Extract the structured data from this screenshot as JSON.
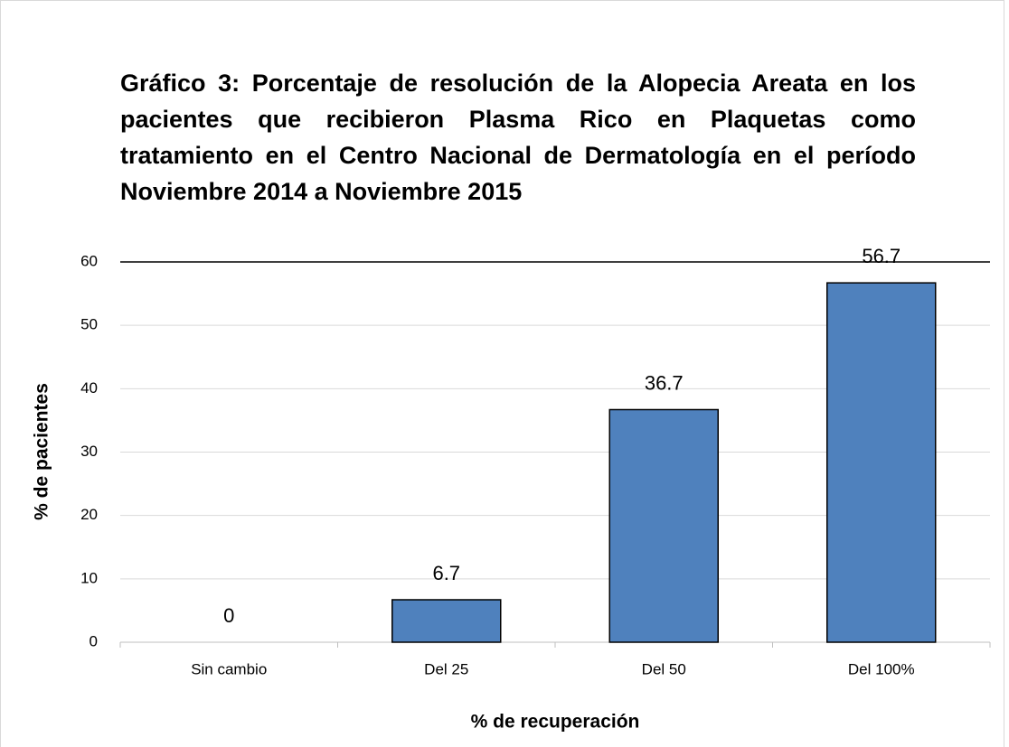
{
  "chart_data": {
    "type": "bar",
    "title": "Gráfico 3: Porcentaje de resolución de la Alopecia Areata en los pacientes que recibieron Plasma Rico en Plaquetas como tratamiento en el Centro Nacional de Dermatología en el período Noviembre 2014 a Noviembre 2015",
    "x_label": "% de recuperación",
    "y_label": "% de pacientes",
    "categories": [
      "Sin cambio",
      "Del 25",
      "Del 50",
      "Del 100%"
    ],
    "values": [
      0,
      6.7,
      36.7,
      56.7
    ],
    "color": "#4f81bd",
    "ylim": [
      0,
      60
    ],
    "yticks": [
      0,
      10,
      20,
      30,
      40,
      50,
      60
    ],
    "grid": true
  }
}
